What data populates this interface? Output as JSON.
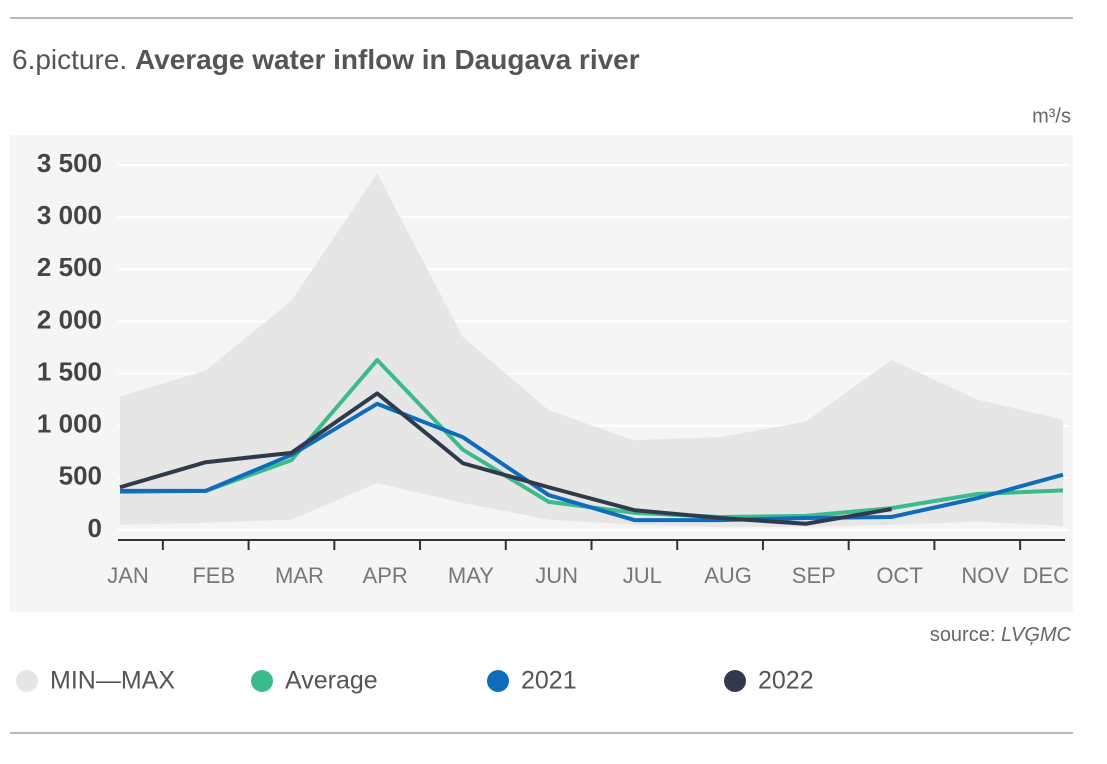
{
  "chart_data": {
    "type": "line",
    "figure_label": "6.picture.",
    "title": "Average water inflow in Daugava river",
    "unit": "m³/s",
    "source_label": "source:",
    "source": "LVĢMC",
    "categories": [
      "JAN",
      "FEB",
      "MAR",
      "APR",
      "MAY",
      "JUN",
      "JUL",
      "AUG",
      "SEP",
      "OCT",
      "NOV",
      "DEC"
    ],
    "ylim": [
      0,
      3500
    ],
    "yticks": [
      0,
      500,
      {
        "value": 1000,
        "label": "1 000"
      },
      {
        "value": 1500,
        "label": "1 500"
      },
      {
        "value": 2000,
        "label": "2 000"
      },
      {
        "value": 2500,
        "label": "2 500"
      },
      {
        "value": 3000,
        "label": "3 000"
      },
      {
        "value": 3500,
        "label": "3 500"
      }
    ],
    "grid": true,
    "band": {
      "name": "MIN—MAX",
      "color": "#e6e6e6",
      "high": [
        1280,
        1530,
        2200,
        3420,
        1850,
        1150,
        860,
        890,
        1040,
        1630,
        1250,
        1060
      ],
      "low": [
        50,
        70,
        100,
        450,
        260,
        100,
        50,
        30,
        30,
        50,
        80,
        40
      ]
    },
    "series": [
      {
        "name": "Average",
        "color": "#3dba8c",
        "values": [
          365,
          375,
          670,
          1630,
          770,
          270,
          165,
          125,
          135,
          210,
          345,
          380
        ]
      },
      {
        "name": "2021",
        "color": "#0f6cbd",
        "values": [
          375,
          375,
          720,
          1210,
          890,
          335,
          95,
          95,
          115,
          125,
          305,
          530
        ]
      },
      {
        "name": "2022",
        "color": "#2f3b4c",
        "values": [
          410,
          650,
          740,
          1310,
          640,
          410,
          190,
          115,
          60,
          200,
          null,
          null
        ]
      }
    ]
  }
}
